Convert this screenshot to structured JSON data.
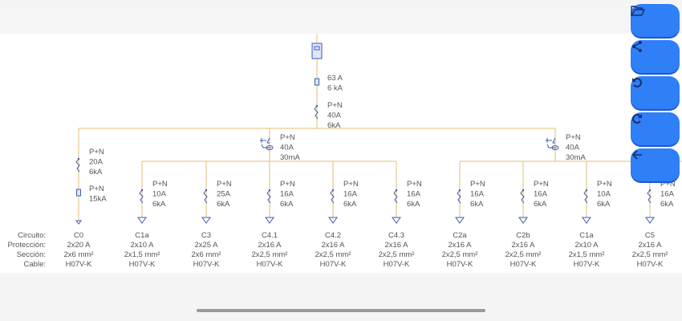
{
  "colors": {
    "wire": "#e6c98a",
    "symbol": "#3b5bb5",
    "text": "#555555",
    "button": "#2f7ff7"
  },
  "toolbar": {
    "buttons": [
      {
        "name": "open-folder-button",
        "icon": "folder-open-icon"
      },
      {
        "name": "share-button",
        "icon": "share-icon"
      },
      {
        "name": "undo-button",
        "icon": "undo-icon"
      },
      {
        "name": "redo-button",
        "icon": "redo-icon"
      },
      {
        "name": "back-button",
        "icon": "arrow-left-icon"
      }
    ]
  },
  "main": {
    "fuse": [
      "63 A",
      "6 kA"
    ],
    "breaker": [
      "P+N",
      "40A",
      "6kA"
    ]
  },
  "rcds": [
    [
      "P+N",
      "40A",
      "30mA"
    ],
    [
      "P+N",
      "40A",
      "30mA"
    ]
  ],
  "c0_devices": {
    "breaker": [
      "P+N",
      "20A",
      "6kA"
    ],
    "surge": [
      "P+N",
      "15kA"
    ]
  },
  "row_labels": [
    "Circuito:",
    "Protección:",
    "Sección:",
    "Cable:"
  ],
  "circuits": [
    {
      "id": "C0",
      "prot": "2x20 A",
      "sec": "2x6 mm²",
      "cable": "H07V-K",
      "breaker": null
    },
    {
      "id": "C1a",
      "prot": "2x10 A",
      "sec": "2x1,5 mm²",
      "cable": "H07V-K",
      "breaker": [
        "P+N",
        "10A",
        "6kA"
      ]
    },
    {
      "id": "C3",
      "prot": "2x25 A",
      "sec": "2x6 mm²",
      "cable": "H07V-K",
      "breaker": [
        "P+N",
        "25A",
        "6kA"
      ]
    },
    {
      "id": "C4.1",
      "prot": "2x16 A",
      "sec": "2x2,5 mm²",
      "cable": "H07V-K",
      "breaker": [
        "P+N",
        "16A",
        "6kA"
      ]
    },
    {
      "id": "C4.2",
      "prot": "2x16 A",
      "sec": "2x2,5 mm²",
      "cable": "H07V-K",
      "breaker": [
        "P+N",
        "16A",
        "6kA"
      ]
    },
    {
      "id": "C4.3",
      "prot": "2x16 A",
      "sec": "2x2,5 mm²",
      "cable": "H07V-K",
      "breaker": [
        "P+N",
        "16A",
        "6kA"
      ]
    },
    {
      "id": "C2a",
      "prot": "2x16 A",
      "sec": "2x2,5 mm²",
      "cable": "H07V-K",
      "breaker": [
        "P+N",
        "16A",
        "6kA"
      ]
    },
    {
      "id": "C2b",
      "prot": "2x16 A",
      "sec": "2x2,5 mm²",
      "cable": "H07V-K",
      "breaker": [
        "P+N",
        "16A",
        "6kA"
      ]
    },
    {
      "id": "C1a",
      "prot": "2x10 A",
      "sec": "2x1,5 mm²",
      "cable": "H07V-K",
      "breaker": [
        "P+N",
        "10A",
        "6kA"
      ]
    },
    {
      "id": "C5",
      "prot": "2x16 A",
      "sec": "2x2,5 mm²",
      "cable": "H07V-K",
      "breaker": [
        "P+N",
        "16A",
        "6kA"
      ]
    }
  ]
}
